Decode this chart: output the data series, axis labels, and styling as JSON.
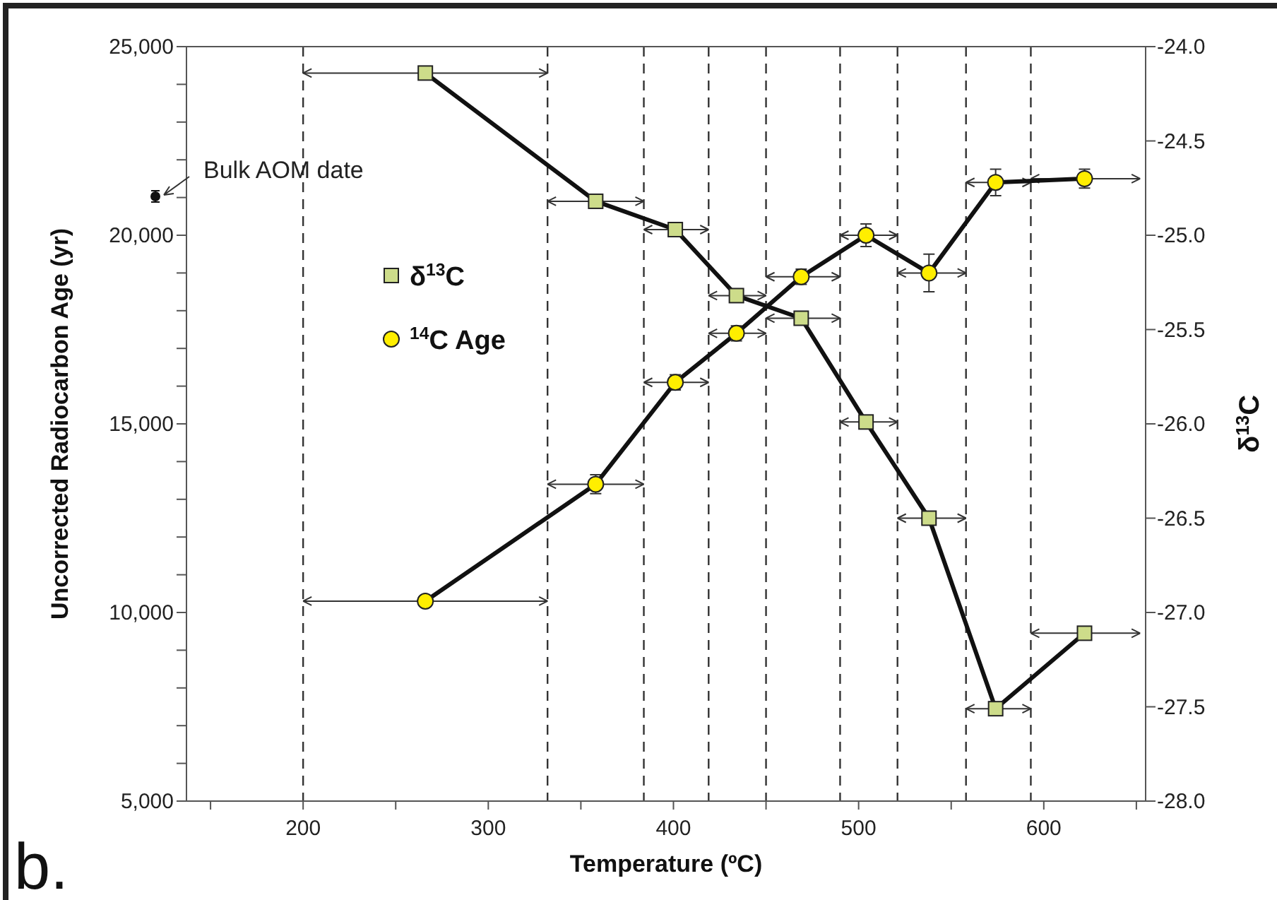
{
  "chart_data": {
    "type": "line",
    "xlabel": "Temperature (ºC)",
    "ylabel": "Uncorrected Radiocarbon Age (yr)",
    "y2label": "δ$^{13}$C",
    "annotations": [
      "b.",
      "Bulk AOM date"
    ],
    "x": [
      266,
      358,
      401,
      434,
      469,
      504,
      538,
      574,
      622
    ],
    "series": [
      {
        "name": "δ$^{13}$C",
        "axis": "y2",
        "marker": "square",
        "color": "#cddc8a",
        "values": [
          -24.14,
          -24.82,
          -24.97,
          -25.32,
          -25.44,
          -25.99,
          -26.5,
          -27.51,
          -27.11
        ],
        "xerrors": [
          [
            200,
            332
          ],
          [
            332,
            384
          ],
          [
            384,
            419
          ],
          [
            419,
            450
          ],
          [
            450,
            490
          ],
          [
            490,
            521
          ],
          [
            521,
            558
          ],
          [
            558,
            593
          ],
          [
            593,
            652
          ]
        ]
      },
      {
        "name": "$^{14}$C Age",
        "marker": "circle",
        "color": "#ffee00",
        "values": [
          10300,
          13400,
          16100,
          17400,
          18900,
          20000,
          19000,
          21400,
          21500
        ],
        "errors": [
          150,
          250,
          200,
          200,
          200,
          300,
          500,
          350,
          250
        ],
        "xerrors": [
          [
            200,
            332
          ],
          [
            332,
            384
          ],
          [
            384,
            419
          ],
          [
            419,
            450
          ],
          [
            450,
            490
          ],
          [
            490,
            521
          ],
          [
            521,
            558
          ],
          [
            558,
            593
          ],
          [
            593,
            652
          ]
        ]
      }
    ],
    "ref_lines": [
      {
        "axis": "x",
        "value": 200,
        "line_style": "dashed",
        "color": "#333333"
      },
      {
        "axis": "x",
        "value": 332,
        "line_style": "dashed",
        "color": "#333333"
      },
      {
        "axis": "x",
        "value": 384,
        "line_style": "dashed",
        "color": "#333333"
      },
      {
        "axis": "x",
        "value": 419,
        "line_style": "dashed",
        "color": "#333333"
      },
      {
        "axis": "x",
        "value": 450,
        "line_style": "dashed",
        "color": "#333333"
      },
      {
        "axis": "x",
        "value": 490,
        "line_style": "dashed",
        "color": "#333333"
      },
      {
        "axis": "x",
        "value": 521,
        "line_style": "dashed",
        "color": "#333333"
      },
      {
        "axis": "x",
        "value": 558,
        "line_style": "dashed",
        "color": "#333333"
      },
      {
        "axis": "x",
        "value": 593,
        "line_style": "dashed",
        "color": "#333333"
      }
    ],
    "xlim": [
      137,
      655
    ],
    "xticks": [
      {
        "value": 150,
        "label": null
      },
      200,
      {
        "value": 250,
        "label": null
      },
      300,
      {
        "value": 350,
        "label": null
      },
      400,
      {
        "value": 450,
        "label": null
      },
      500,
      {
        "value": 550,
        "label": null
      },
      600,
      {
        "value": 650,
        "label": null
      }
    ],
    "ylim": [
      5000,
      25000
    ],
    "yticks": [
      {
        "value": 5000,
        "label": "5,000"
      },
      {
        "value": 6000,
        "label": null
      },
      {
        "value": 7000,
        "label": null
      },
      {
        "value": 8000,
        "label": null
      },
      {
        "value": 9000,
        "label": null
      },
      {
        "value": 10000,
        "label": "10,000"
      },
      {
        "value": 11000,
        "label": null
      },
      {
        "value": 12000,
        "label": null
      },
      {
        "value": 13000,
        "label": null
      },
      {
        "value": 14000,
        "label": null
      },
      {
        "value": 15000,
        "label": "15,000"
      },
      {
        "value": 16000,
        "label": null
      },
      {
        "value": 17000,
        "label": null
      },
      {
        "value": 18000,
        "label": null
      },
      {
        "value": 19000,
        "label": null
      },
      {
        "value": 20000,
        "label": "20,000"
      },
      {
        "value": 21000,
        "label": null
      },
      {
        "value": 22000,
        "label": null
      },
      {
        "value": 23000,
        "label": null
      },
      {
        "value": 24000,
        "label": null
      },
      {
        "value": 25000,
        "label": "25,000"
      }
    ],
    "y2lim": [
      -28,
      -24
    ],
    "y2ticks": [
      {
        "value": -28,
        "label": "-28.0"
      },
      {
        "value": -27.5,
        "label": "-27.5"
      },
      {
        "value": -27,
        "label": "-27.0"
      },
      {
        "value": -26.5,
        "label": "-26.5"
      },
      {
        "value": -26,
        "label": "-26.0"
      },
      {
        "value": -25.5,
        "label": "-25.5"
      },
      {
        "value": -25,
        "label": "-25.0"
      },
      {
        "value": -24.5,
        "label": "-24.5"
      },
      {
        "value": -24,
        "label": "-24.0"
      }
    ],
    "legend": "top left",
    "grid": false,
    "line_style": "solid"
  }
}
